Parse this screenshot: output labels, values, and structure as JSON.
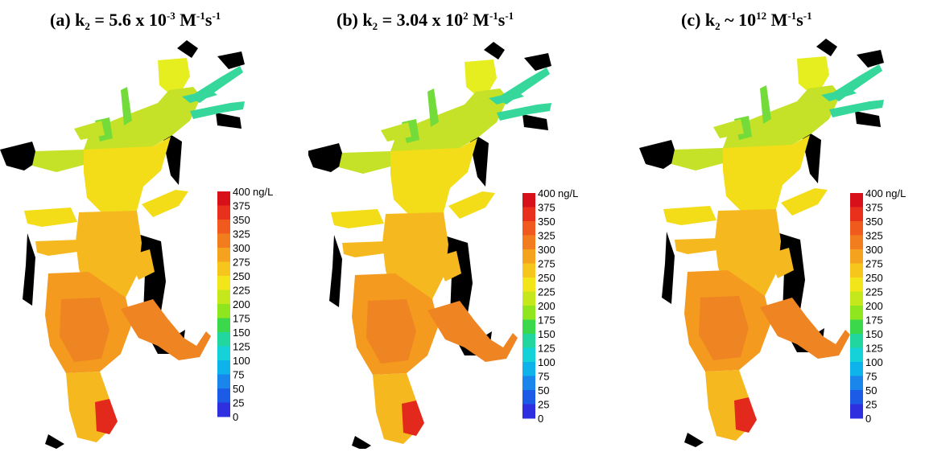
{
  "panels": [
    {
      "id": "a",
      "title_pre": "(a) k",
      "title_sub": "2",
      "title_mid": " = 5.6 x 10",
      "title_exp": "-3",
      "title_unit_a": " M",
      "title_unit_a_exp": "-1",
      "title_unit_b": "s",
      "title_unit_b_exp": "-1"
    },
    {
      "id": "b",
      "title_pre": "(b) k",
      "title_sub": "2",
      "title_mid": " = 3.04 x 10",
      "title_exp": "2",
      "title_unit_a": " M",
      "title_unit_a_exp": "-1",
      "title_unit_b": "s",
      "title_unit_b_exp": "-1"
    },
    {
      "id": "c",
      "title_pre": "(c) k",
      "title_sub": "2",
      "title_mid": " ~ 10",
      "title_exp": "12",
      "title_unit_a": " M",
      "title_unit_a_exp": "-1",
      "title_unit_b": "s",
      "title_unit_b_exp": "-1"
    }
  ],
  "legend": {
    "unit": "ng/L",
    "levels": [
      "400",
      "375",
      "350",
      "325",
      "300",
      "275",
      "250",
      "225",
      "200",
      "175",
      "150",
      "125",
      "100",
      "75",
      "50",
      "25",
      "0"
    ],
    "colors": [
      "#d7101a",
      "#e8301c",
      "#f05a1c",
      "#f27d1e",
      "#f5a21e",
      "#f7c61c",
      "#f2e51a",
      "#c4e81c",
      "#8fe61e",
      "#3ad84a",
      "#22d6a0",
      "#14d2d8",
      "#0fb3ec",
      "#1a86ec",
      "#1c5be6",
      "#2e30e0",
      "#5a10d8"
    ]
  },
  "map_colors": {
    "upper": "#c6e228",
    "upper_light": "#e6ee20",
    "yellow": "#f3dc18",
    "mid": "#f5b81e",
    "lower": "#f39a1f",
    "orange": "#ef8422",
    "red": "#e3291c",
    "green": "#74dc3a",
    "teal": "#35d89a",
    "land": "#000000"
  }
}
